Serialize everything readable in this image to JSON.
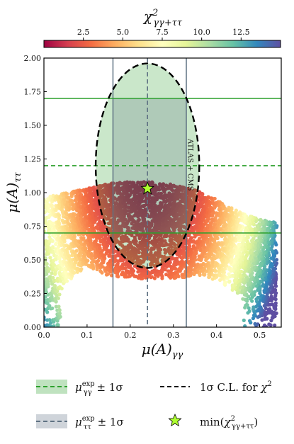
{
  "chart_data": {
    "type": "scatter",
    "xlabel": "μ(A)γγ",
    "ylabel": "μ(A)ττ",
    "xlim": [
      0.0,
      0.55
    ],
    "ylim": [
      0.0,
      2.0
    ],
    "x_ticks": [
      "0.0",
      "0.1",
      "0.2",
      "0.3",
      "0.4",
      "0.5"
    ],
    "y_ticks": [
      "0.00",
      "0.25",
      "0.50",
      "0.75",
      "1.00",
      "1.25",
      "1.50",
      "1.75",
      "2.00"
    ],
    "colorbar": {
      "label": "χ²γγ+ττ",
      "range": [
        0.0,
        15.0
      ],
      "ticks": [
        "2.5",
        "5.0",
        "7.5",
        "10.0",
        "12.5"
      ],
      "colormap": [
        "#9e0142",
        "#d53e4f",
        "#f46d43",
        "#fdae61",
        "#fee08b",
        "#ffffbf",
        "#e6f598",
        "#abdda4",
        "#66c2a5",
        "#3288bd",
        "#5e4fa2"
      ]
    },
    "measurements": {
      "gamma_gamma": {
        "central": 0.24,
        "lower": 0.16,
        "upper": 0.33
      },
      "tau_tau": {
        "central": 1.2,
        "lower": 0.7,
        "upper": 1.7
      },
      "ellipse_1sigma": {
        "x_center": 0.24,
        "y_center": 1.2,
        "x_halfwidth": 0.12,
        "y_halfwidth": 0.76
      }
    },
    "best_fit": {
      "x": 0.24,
      "y": 1.03
    },
    "annotation": "ATLAS + CMS",
    "grid": false,
    "scatter_envelope": {
      "x": [
        0.0,
        0.05,
        0.1,
        0.15,
        0.2,
        0.25,
        0.3,
        0.35,
        0.4,
        0.45,
        0.5,
        0.54
      ],
      "y_lower": [
        0.0,
        0.33,
        0.45,
        0.38,
        0.36,
        0.36,
        0.36,
        0.38,
        0.35,
        0.25,
        0.1,
        0.05
      ],
      "y_upper": [
        0.96,
        1.0,
        1.03,
        1.07,
        1.08,
        1.08,
        1.06,
        1.02,
        0.95,
        0.86,
        0.8,
        0.78
      ]
    }
  },
  "legend": {
    "item1": "μγγexp ± 1σ",
    "item2": "μττexp ± 1σ",
    "item3": "1σ C.L. for χ²",
    "item4": "min(χ²γγ+ττ)"
  },
  "colors": {
    "green_band": "#2ca02c",
    "gray_band": "#5f7283",
    "ellipse": "#000000",
    "star": "#adff2f"
  }
}
